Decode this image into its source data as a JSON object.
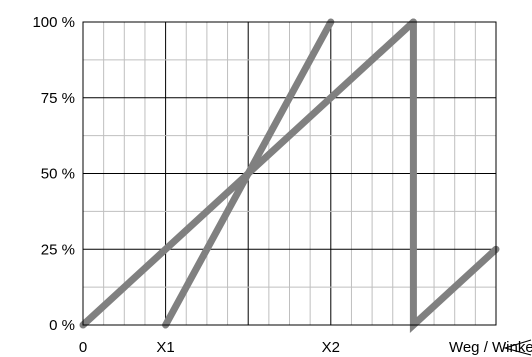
{
  "chart_data": {
    "type": "line",
    "title": "",
    "xlabel": "Weg / Winkel",
    "ylabel": "",
    "x_ticks": [
      "0",
      "X1",
      "X2"
    ],
    "y_ticks": [
      "0 %",
      "25 %",
      "50 %",
      "75 %",
      "100 %"
    ],
    "xlim": [
      0,
      10
    ],
    "ylim": [
      0,
      100
    ],
    "grid": true,
    "colors": {
      "series": "#808080",
      "grid": "#bfbfbf",
      "major_grid": "#000000",
      "frame": "#000000"
    },
    "series": [
      {
        "x": [
          0,
          8
        ],
        "y": [
          0,
          100
        ]
      },
      {
        "x": [
          2,
          6
        ],
        "y": [
          0,
          100
        ]
      },
      {
        "x": [
          8,
          8,
          10
        ],
        "y": [
          100,
          0,
          25
        ]
      }
    ]
  }
}
